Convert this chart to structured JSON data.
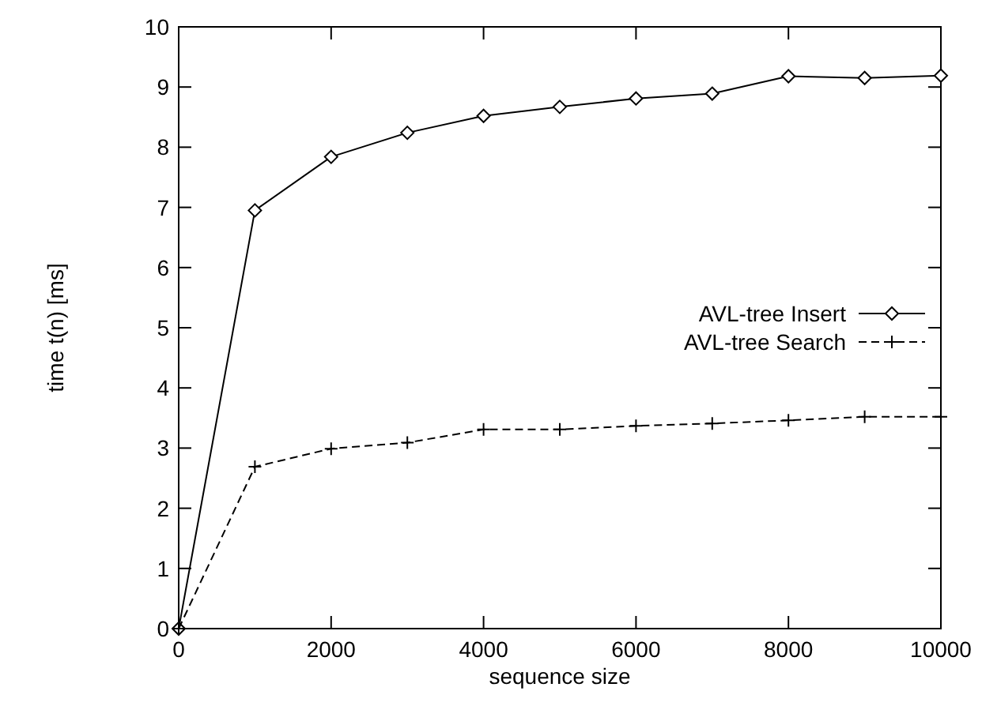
{
  "chart_data": {
    "type": "line",
    "xlabel": "sequence size",
    "ylabel": "time t(n) [ms]",
    "x": [
      0,
      1000,
      2000,
      3000,
      4000,
      5000,
      6000,
      7000,
      8000,
      9000,
      10000
    ],
    "xlim": [
      0,
      10000
    ],
    "xticks": [
      0,
      2000,
      4000,
      6000,
      8000,
      10000
    ],
    "ylim": [
      0,
      10
    ],
    "yticks": [
      0,
      1,
      2,
      3,
      4,
      5,
      6,
      7,
      8,
      9,
      10
    ],
    "grid": false,
    "legend": "right",
    "series": [
      {
        "name": "AVL-tree Insert",
        "color": "#000000",
        "marker": "diamond",
        "line_style": "solid",
        "values": [
          0,
          6.95,
          7.84,
          8.24,
          8.52,
          8.67,
          8.81,
          8.89,
          9.18,
          9.15,
          9.19
        ]
      },
      {
        "name": "AVL-tree Search",
        "color": "#000000",
        "marker": "cross",
        "line_style": "dashed",
        "values": [
          0,
          2.69,
          2.99,
          3.09,
          3.31,
          3.31,
          3.37,
          3.41,
          3.46,
          3.52,
          3.52
        ]
      }
    ]
  }
}
